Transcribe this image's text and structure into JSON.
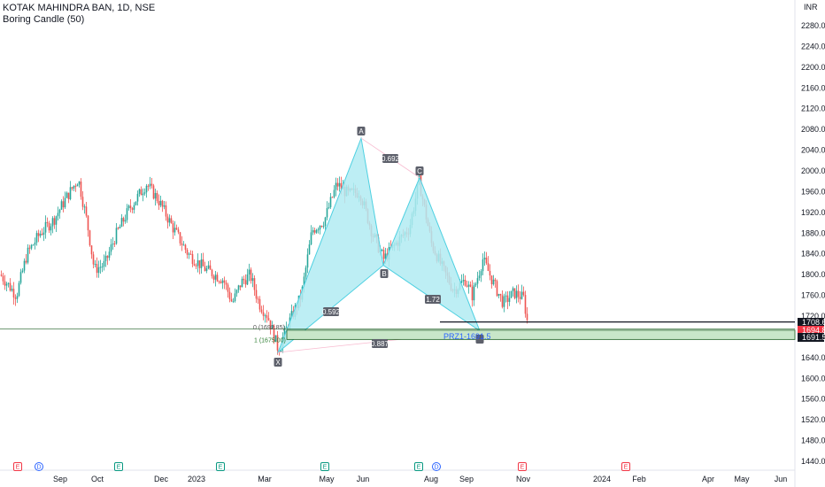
{
  "header": {
    "symbol_line": "KOTAK MAHINDRA BAN, 1D, NSE",
    "indicator_line": "Boring Candle (50)"
  },
  "colors": {
    "up": "#26a69a",
    "down": "#ef5350",
    "pattern_fill": "#b2ebf2",
    "pattern_stroke": "#4dd0e1",
    "prz_fill": "#c8e6c9",
    "prz_stroke": "#1b5e20",
    "label_bg": "#5d606b",
    "black_line": "#131722",
    "red_tag": "#f23645"
  },
  "chart_data": {
    "type": "candlestick",
    "currency": "INR",
    "y_ticks": [
      "2280.00",
      "2240.00",
      "2200.00",
      "2160.00",
      "2120.00",
      "2080.00",
      "2040.00",
      "2000.00",
      "1960.00",
      "1920.00",
      "1880.00",
      "1840.00",
      "1800.00",
      "1760.00",
      "1720.00",
      "1680.00",
      "1640.00",
      "1600.00",
      "1560.00",
      "1520.00",
      "1480.00",
      "1440.00"
    ],
    "ylim": [
      1440,
      2280
    ],
    "x_ticks": [
      "Sep",
      "Oct",
      "Dec",
      "2023",
      "Mar",
      "May",
      "Jun",
      "Aug",
      "Sep",
      "Nov",
      "2024",
      "Feb",
      "Apr",
      "May",
      "Jun"
    ],
    "price_range": {
      "start": "2022-08",
      "end": "2023-10",
      "low_approx": 1650,
      "high_approx": 2063
    },
    "pattern": {
      "name": "Harmonic (XABCD)",
      "points": [
        {
          "label": "X",
          "price": 1650
        },
        {
          "label": "A",
          "price": 2063
        },
        {
          "label": "B",
          "price": 1818
        },
        {
          "label": "C",
          "price": 1987
        },
        {
          "label": "D",
          "price": 1691.5
        }
      ],
      "ratios": {
        "XB": "0.592",
        "AC": "0.692",
        "BD": "1.72",
        "XD": "0.887"
      }
    },
    "fib_labels": [
      "0 (1692.85)",
      "1 (1675.00)"
    ],
    "prz_label": "PRZ1-1691.5",
    "price_tags": [
      {
        "value": "1708.65",
        "color": "black"
      },
      {
        "value": "1694.85",
        "color": "red"
      },
      {
        "value": "1691.50",
        "color": "black"
      }
    ],
    "events": [
      {
        "type": "E",
        "color": "red"
      },
      {
        "type": "D",
        "color": "blue"
      },
      {
        "type": "E",
        "color": "green"
      },
      {
        "type": "E",
        "color": "green"
      },
      {
        "type": "E",
        "color": "green"
      },
      {
        "type": "E",
        "color": "green"
      },
      {
        "type": "D",
        "color": "blue"
      },
      {
        "type": "E",
        "color": "red"
      },
      {
        "type": "E",
        "color": "red"
      }
    ]
  }
}
